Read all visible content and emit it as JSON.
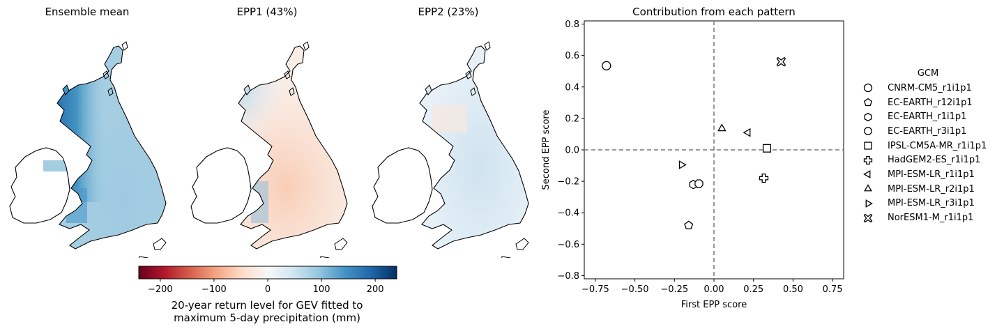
{
  "maps": [
    {
      "title": "Ensemble mean",
      "style": "mean"
    },
    {
      "title": "EPP1 (43%)",
      "style": "epp1"
    },
    {
      "title": "EPP2 (23%)",
      "style": "epp2"
    }
  ],
  "colorbar": {
    "colormap": "RdBu",
    "min": -240,
    "max": 240,
    "ticks": [
      -200,
      -100,
      0,
      100,
      200
    ],
    "tick_labels": [
      "−200",
      "−100",
      "0",
      "100",
      "200"
    ],
    "label_line1": "20-year return level for GEV fitted to",
    "label_line2": "maximum 5-day precipitation (mm)"
  },
  "chart_data": {
    "type": "scatter",
    "title": "Contribution from each pattern",
    "xlabel": "First EPP score",
    "ylabel": "Second EPP score",
    "xlim": [
      -0.82,
      0.82
    ],
    "ylim": [
      -0.82,
      0.82
    ],
    "xticks": [
      -0.75,
      -0.5,
      -0.25,
      0.0,
      0.25,
      0.5,
      0.75
    ],
    "xtick_labels": [
      "−0.75",
      "−0.50",
      "−0.25",
      "0.00",
      "0.25",
      "0.50",
      "0.75"
    ],
    "yticks": [
      -0.8,
      -0.6,
      -0.4,
      -0.2,
      0.0,
      0.2,
      0.4,
      0.6,
      0.8
    ],
    "ytick_labels": [
      "−0.8",
      "−0.6",
      "−0.4",
      "−0.2",
      "0.0",
      "0.2",
      "0.4",
      "0.6",
      "0.8"
    ],
    "reference_lines": {
      "x": 0,
      "y": 0,
      "style": "dashed",
      "color": "#777777"
    },
    "legend_title": "GCM",
    "legend_position": "right",
    "series": [
      {
        "name": "CNRM-CM5_r1i1p1",
        "marker": "circle",
        "x": -0.68,
        "y": 0.535
      },
      {
        "name": "EC-EARTH_r12i1p1",
        "marker": "pentagon",
        "x": -0.16,
        "y": -0.48
      },
      {
        "name": "EC-EARTH_r1i1p1",
        "marker": "hexagon",
        "x": -0.13,
        "y": -0.22
      },
      {
        "name": "EC-EARTH_r3i1p1",
        "marker": "octagon",
        "x": -0.095,
        "y": -0.215
      },
      {
        "name": "IPSL-CM5A-MR_r1i1p1",
        "marker": "square",
        "x": 0.335,
        "y": 0.01
      },
      {
        "name": "HadGEM2-ES_r1i1p1",
        "marker": "plus",
        "x": 0.315,
        "y": -0.18
      },
      {
        "name": "MPI-ESM-LR_r1i1p1",
        "marker": "triangle-left",
        "x": 0.215,
        "y": 0.11
      },
      {
        "name": "MPI-ESM-LR_r2i1p1",
        "marker": "triangle-up",
        "x": 0.05,
        "y": 0.135
      },
      {
        "name": "MPI-ESM-LR_r3i1p1",
        "marker": "triangle-right",
        "x": -0.205,
        "y": -0.095
      },
      {
        "name": "NorESM1-M_r1i1p1",
        "marker": "x-filled",
        "x": 0.425,
        "y": 0.56
      }
    ]
  }
}
